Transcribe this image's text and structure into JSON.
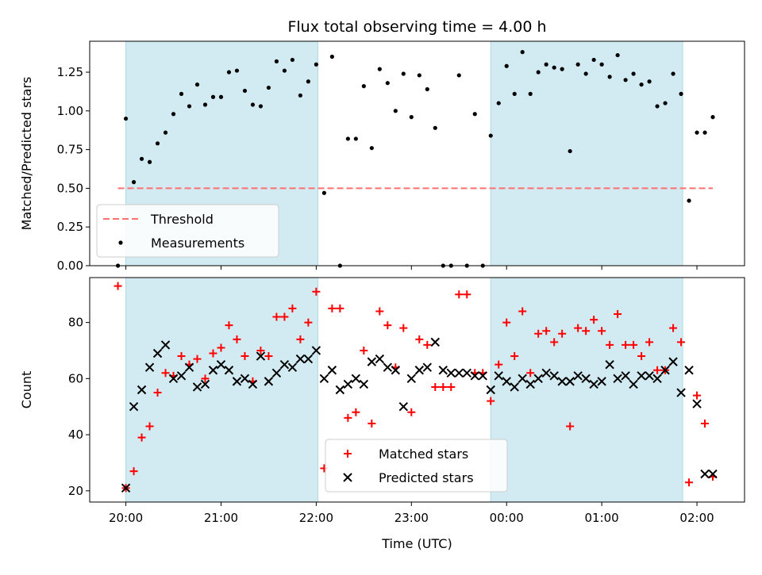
{
  "chart_data": [
    {
      "type": "scatter",
      "title": "Flux total observing time = 4.00 h",
      "xlabel": "",
      "ylabel": "Matched/Predicted stars",
      "ylim": [
        0,
        1.45
      ],
      "xlim_hours": [
        19.62,
        26.5
      ],
      "yticks": [
        0.0,
        0.25,
        0.5,
        0.75,
        1.0,
        1.25
      ],
      "ytick_labels": [
        "0.00",
        "0.25",
        "0.50",
        "0.75",
        "1.00",
        "1.25"
      ],
      "shaded_intervals": [
        [
          "20:00",
          "22:01"
        ],
        [
          "23:50",
          "01:51"
        ]
      ],
      "shade_color": "#add8e6",
      "threshold": {
        "name": "Threshold",
        "value": 0.5,
        "x_range": [
          "19:55",
          "02:10"
        ],
        "color": "#ff7070"
      },
      "legend": {
        "placement": "lower-left",
        "entries": [
          "Threshold",
          "Measurements"
        ]
      },
      "series": [
        {
          "name": "Measurements",
          "color": "#000000",
          "x": [
            "19:55",
            "20:00",
            "20:05",
            "20:10",
            "20:15",
            "20:20",
            "20:25",
            "20:30",
            "20:35",
            "20:40",
            "20:45",
            "20:50",
            "20:55",
            "21:00",
            "21:05",
            "21:10",
            "21:15",
            "21:20",
            "21:25",
            "21:30",
            "21:35",
            "21:40",
            "21:45",
            "21:50",
            "21:55",
            "22:00",
            "22:05",
            "22:10",
            "22:15",
            "22:20",
            "22:25",
            "22:30",
            "22:35",
            "22:40",
            "22:45",
            "22:50",
            "22:55",
            "23:00",
            "23:05",
            "23:10",
            "23:15",
            "23:20",
            "23:25",
            "23:30",
            "23:35",
            "23:40",
            "23:45",
            "23:50",
            "23:55",
            "00:00",
            "00:05",
            "00:10",
            "00:15",
            "00:20",
            "00:25",
            "00:30",
            "00:35",
            "00:40",
            "00:45",
            "00:50",
            "00:55",
            "01:00",
            "01:05",
            "01:10",
            "01:15",
            "01:20",
            "01:25",
            "01:30",
            "01:35",
            "01:40",
            "01:45",
            "01:50",
            "01:55",
            "02:00",
            "02:05",
            "02:10"
          ],
          "y": [
            0.0,
            0.95,
            0.54,
            0.69,
            0.67,
            0.79,
            0.86,
            0.98,
            1.11,
            1.03,
            1.17,
            1.04,
            1.09,
            1.09,
            1.25,
            1.26,
            1.13,
            1.04,
            1.03,
            1.15,
            1.32,
            1.26,
            1.33,
            1.1,
            1.19,
            1.3,
            0.47,
            1.35,
            0.0,
            0.82,
            0.82,
            1.16,
            0.76,
            1.27,
            1.18,
            1.0,
            1.24,
            0.96,
            1.23,
            1.14,
            0.89,
            0.0,
            0.0,
            1.23,
            0.0,
            0.98,
            0.0,
            0.84,
            1.05,
            1.29,
            1.11,
            1.38,
            1.11,
            1.25,
            1.3,
            1.28,
            1.27,
            0.74,
            1.3,
            1.24,
            1.33,
            1.3,
            1.22,
            1.36,
            1.2,
            1.24,
            1.17,
            1.19,
            1.03,
            1.05,
            1.24,
            1.11,
            0.42,
            0.86,
            0.86,
            0.96
          ]
        }
      ]
    },
    {
      "type": "scatter",
      "title": "",
      "xlabel": "Time (UTC)",
      "ylabel": "Count",
      "ylim": [
        16,
        96
      ],
      "xlim_hours": [
        19.62,
        26.5
      ],
      "yticks": [
        20,
        40,
        60,
        80
      ],
      "ytick_labels": [
        "20",
        "40",
        "60",
        "80"
      ],
      "xtick_labels": [
        "20:00",
        "21:00",
        "22:00",
        "23:00",
        "00:00",
        "01:00",
        "02:00"
      ],
      "xtick_hours": [
        20,
        21,
        22,
        23,
        24,
        25,
        26
      ],
      "shaded_intervals": [
        [
          "20:00",
          "22:01"
        ],
        [
          "23:50",
          "01:51"
        ]
      ],
      "shade_color": "#add8e6",
      "legend": {
        "placement": "lower-center",
        "entries": [
          "Matched stars",
          "Predicted stars"
        ]
      },
      "series": [
        {
          "name": "Matched stars",
          "marker": "plus",
          "color": "#ff0000",
          "x": [
            "19:55",
            "20:00",
            "20:05",
            "20:10",
            "20:15",
            "20:20",
            "20:25",
            "20:30",
            "20:35",
            "20:40",
            "20:45",
            "20:50",
            "20:55",
            "21:00",
            "21:05",
            "21:10",
            "21:15",
            "21:20",
            "21:25",
            "21:30",
            "21:35",
            "21:40",
            "21:45",
            "21:50",
            "21:55",
            "22:00",
            "22:05",
            "22:10",
            "22:15",
            "22:20",
            "22:25",
            "22:30",
            "22:35",
            "22:40",
            "22:45",
            "22:50",
            "22:55",
            "23:00",
            "23:05",
            "23:10",
            "23:15",
            "23:20",
            "23:25",
            "23:30",
            "23:35",
            "23:40",
            "23:45",
            "23:50",
            "23:55",
            "00:00",
            "00:05",
            "00:10",
            "00:15",
            "00:20",
            "00:25",
            "00:30",
            "00:35",
            "00:40",
            "00:45",
            "00:50",
            "00:55",
            "01:00",
            "01:05",
            "01:10",
            "01:15",
            "01:20",
            "01:25",
            "01:30",
            "01:35",
            "01:40",
            "01:45",
            "01:50",
            "01:55",
            "02:00",
            "02:05",
            "02:10"
          ],
          "y": [
            93,
            21,
            27,
            39,
            43,
            55,
            62,
            61,
            68,
            65,
            67,
            60,
            69,
            71,
            79,
            74,
            68,
            59,
            70,
            68,
            82,
            82,
            85,
            74,
            80,
            91,
            28,
            85,
            85,
            46,
            48,
            70,
            44,
            84,
            79,
            64,
            78,
            48,
            74,
            72,
            57,
            57,
            57,
            90,
            90,
            62,
            62,
            52,
            65,
            80,
            68,
            84,
            62,
            76,
            77,
            73,
            76,
            43,
            78,
            77,
            81,
            77,
            72,
            83,
            72,
            72,
            68,
            73,
            63,
            63,
            78,
            73,
            23,
            54,
            44,
            25
          ]
        },
        {
          "name": "Predicted stars",
          "marker": "x",
          "color": "#000000",
          "x": [
            "20:00",
            "20:05",
            "20:10",
            "20:15",
            "20:20",
            "20:25",
            "20:30",
            "20:35",
            "20:40",
            "20:45",
            "20:50",
            "20:55",
            "21:00",
            "21:05",
            "21:10",
            "21:15",
            "21:20",
            "21:25",
            "21:30",
            "21:35",
            "21:40",
            "21:45",
            "21:50",
            "21:55",
            "22:00",
            "22:05",
            "22:10",
            "22:15",
            "22:20",
            "22:25",
            "22:30",
            "22:35",
            "22:40",
            "22:45",
            "22:50",
            "22:55",
            "23:00",
            "23:05",
            "23:10",
            "23:15",
            "23:20",
            "23:25",
            "23:30",
            "23:35",
            "23:40",
            "23:45",
            "23:50",
            "23:55",
            "00:00",
            "00:05",
            "00:10",
            "00:15",
            "00:20",
            "00:25",
            "00:30",
            "00:35",
            "00:40",
            "00:45",
            "00:50",
            "00:55",
            "01:00",
            "01:05",
            "01:10",
            "01:15",
            "01:20",
            "01:25",
            "01:30",
            "01:35",
            "01:40",
            "01:45",
            "01:50",
            "01:55",
            "02:00",
            "02:05",
            "02:10"
          ],
          "y": [
            21,
            50,
            56,
            64,
            69,
            72,
            60,
            61,
            64,
            57,
            58,
            63,
            65,
            63,
            59,
            60,
            58,
            68,
            59,
            62,
            65,
            64,
            67,
            67,
            70,
            60,
            63,
            56,
            58,
            60,
            58,
            66,
            67,
            64,
            63,
            50,
            60,
            63,
            64,
            73,
            63,
            62,
            62,
            62,
            61,
            61,
            56,
            61,
            59,
            57,
            60,
            58,
            60,
            62,
            61,
            59,
            59,
            61,
            60,
            58,
            59,
            65,
            60,
            61,
            58,
            61,
            61,
            60,
            63,
            66,
            55,
            63,
            51,
            26,
            26
          ]
        }
      ]
    }
  ]
}
